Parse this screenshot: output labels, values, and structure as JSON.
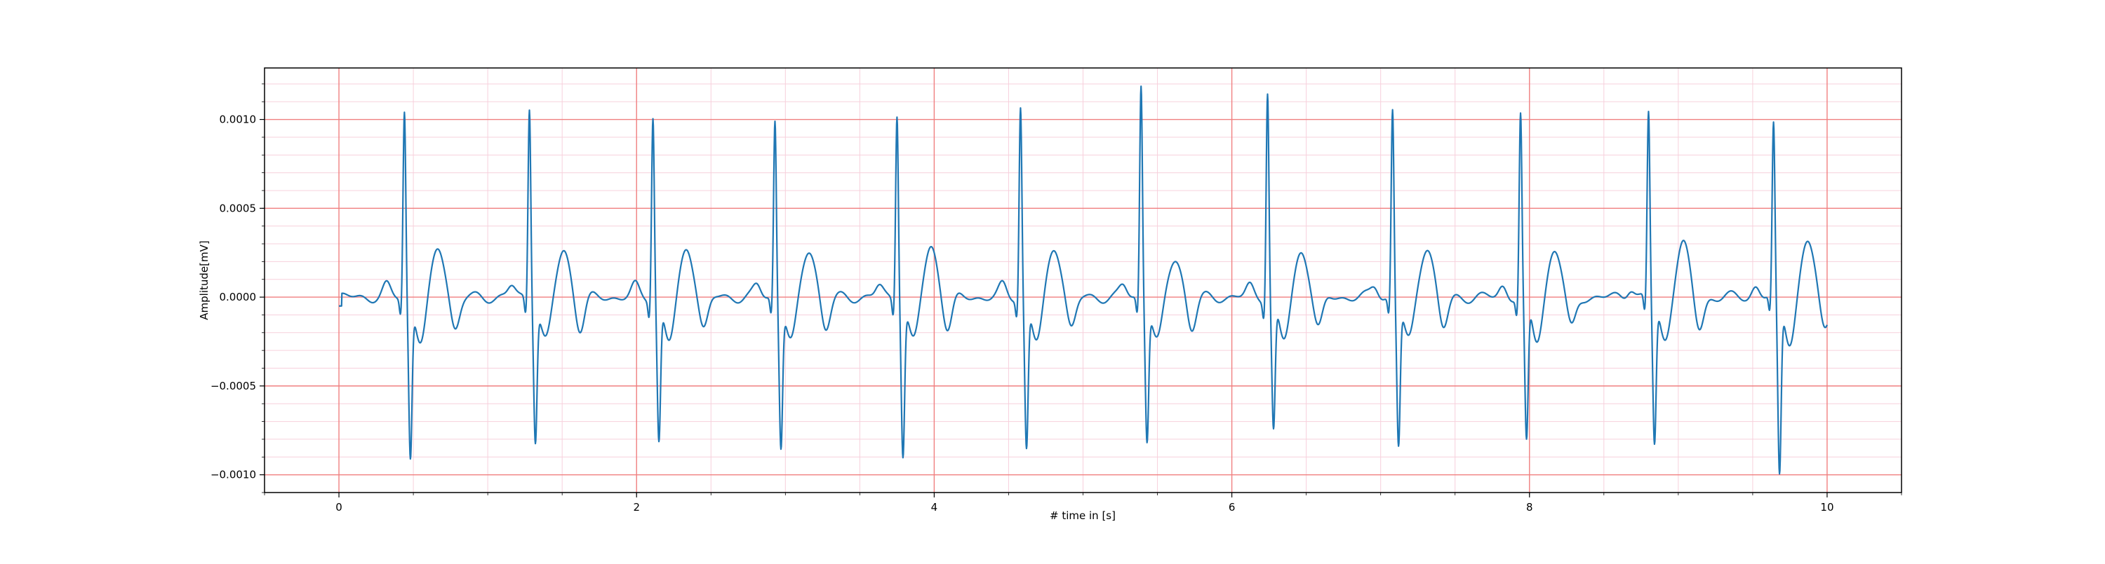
{
  "chart_data": {
    "type": "line",
    "title": "",
    "xlabel": "# time in [s]",
    "ylabel": "Amplitude[mV]",
    "xlim": [
      -0.5,
      10.5
    ],
    "ylim": [
      -0.0011,
      0.00129
    ],
    "x_ticks": [
      0,
      2,
      4,
      6,
      8,
      10
    ],
    "x_tick_labels": [
      "0",
      "2",
      "4",
      "6",
      "8",
      "10"
    ],
    "y_ticks": [
      0.001,
      0.0005,
      0.0,
      -0.0005,
      -0.001
    ],
    "y_tick_labels": [
      "0.0010",
      "0.0005",
      "0.0000",
      "−0.0005",
      "−0.0010"
    ],
    "grid": {
      "major": true,
      "minor": true,
      "major_color": "#f08080",
      "minor_color": "#f7d0dc"
    },
    "legend": null,
    "series": [
      {
        "color": "#1f77b4",
        "beats": [
          {
            "t": 0.44,
            "r": 0.00105,
            "s": -0.00087,
            "t_amp": 0.00027
          },
          {
            "t": 1.28,
            "r": 0.00108,
            "s": -0.00076,
            "t_amp": 0.00026
          },
          {
            "t": 2.11,
            "r": 0.00103,
            "s": -0.00078,
            "t_amp": 0.00027
          },
          {
            "t": 2.93,
            "r": 0.001,
            "s": -0.0008,
            "t_amp": 0.00027
          },
          {
            "t": 3.75,
            "r": 0.00105,
            "s": -0.00085,
            "t_amp": 0.00028
          },
          {
            "t": 4.58,
            "r": 0.00108,
            "s": -0.00082,
            "t_amp": 0.00028
          },
          {
            "t": 5.39,
            "r": 0.0012,
            "s": -0.00076,
            "t_amp": 0.00022
          },
          {
            "t": 6.24,
            "r": 0.00117,
            "s": -0.00072,
            "t_amp": 0.00026
          },
          {
            "t": 7.08,
            "r": 0.00106,
            "s": -0.0008,
            "t_amp": 0.00029
          },
          {
            "t": 7.94,
            "r": 0.00103,
            "s": -0.0008,
            "t_amp": 0.00027
          },
          {
            "t": 8.8,
            "r": 0.00104,
            "s": -0.0008,
            "t_amp": 0.0003
          },
          {
            "t": 9.64,
            "r": 0.00096,
            "s": -0.00098,
            "t_amp": 0.00031
          }
        ]
      }
    ]
  }
}
